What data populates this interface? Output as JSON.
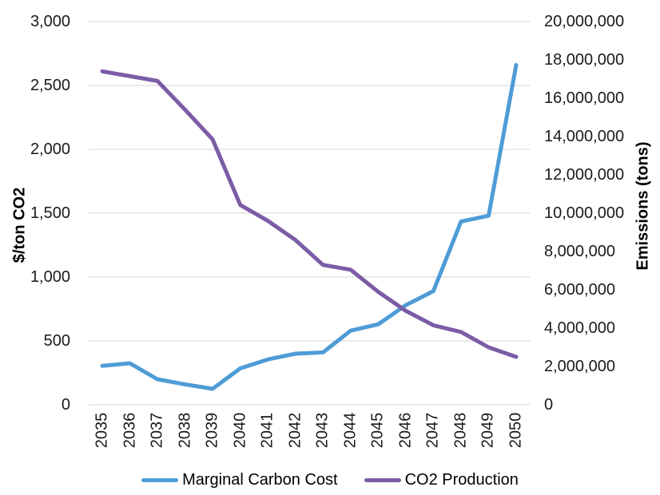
{
  "chart_data": {
    "type": "line",
    "categories": [
      "2035",
      "2036",
      "2037",
      "2038",
      "2039",
      "2040",
      "2041",
      "2042",
      "2043",
      "2044",
      "2045",
      "2046",
      "2047",
      "2048",
      "2049",
      "2050"
    ],
    "series": [
      {
        "name": "Marginal Carbon Cost",
        "axis": "left",
        "color": "#4E9CD6",
        "values": [
          305,
          325,
          200,
          160,
          125,
          285,
          355,
          400,
          410,
          580,
          630,
          780,
          890,
          1435,
          1480,
          2660
        ]
      },
      {
        "name": "CO2 Production",
        "axis": "right",
        "color": "#7C5CA6",
        "values": [
          17400000,
          17150000,
          16900000,
          15400000,
          13850000,
          10430000,
          9600000,
          8600000,
          7300000,
          7050000,
          5900000,
          4900000,
          4150000,
          3800000,
          3000000,
          2500000
        ]
      }
    ],
    "axes": {
      "left": {
        "title": "$/ton CO2",
        "min": 0,
        "max": 3000,
        "tick_step": 500
      },
      "right": {
        "title": "Emissions (tons)",
        "min": 0,
        "max": 20000000,
        "tick_step": 2000000
      }
    },
    "grid": true,
    "grid_color": "#DEDEDE",
    "text_color": "#1a1a1a",
    "legend_position": "bottom"
  }
}
